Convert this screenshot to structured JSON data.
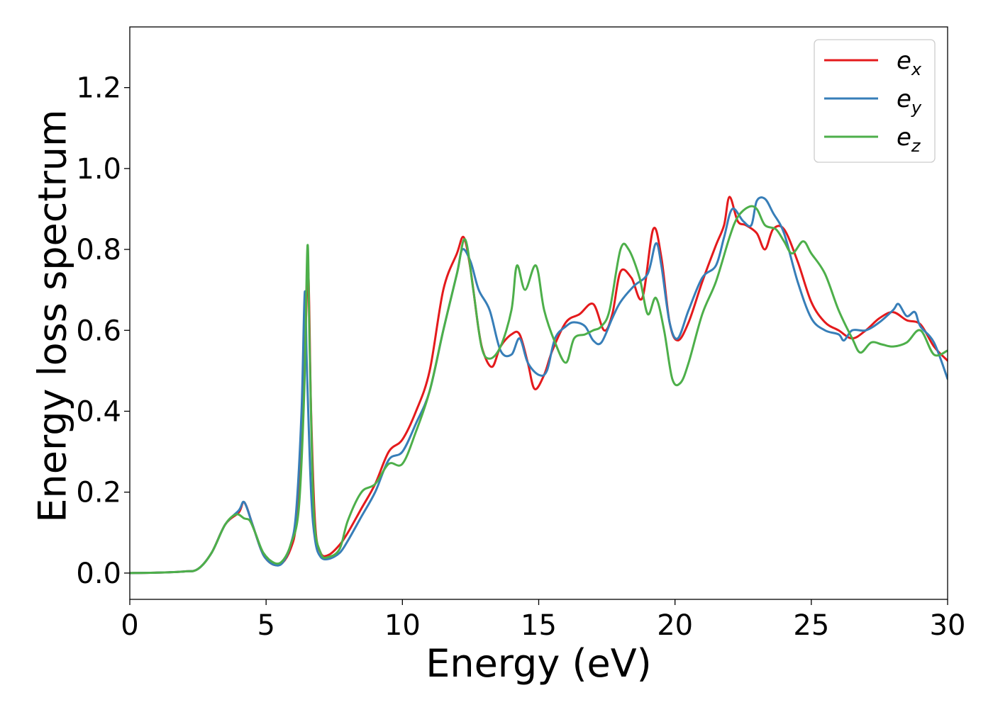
{
  "chart_data": {
    "type": "line",
    "title": "",
    "xlabel": "Energy (eV)",
    "ylabel": "Energy loss spectrum",
    "xlim": [
      0,
      30
    ],
    "ylim": [
      -0.065,
      1.35
    ],
    "xticks": [
      0,
      5,
      10,
      15,
      20,
      25,
      30
    ],
    "xtick_labels": [
      "0",
      "5",
      "10",
      "15",
      "20",
      "25",
      "30"
    ],
    "yticks": [
      0.0,
      0.2,
      0.4,
      0.6,
      0.8,
      1.0,
      1.2
    ],
    "ytick_labels": [
      "0.0",
      "0.2",
      "0.4",
      "0.6",
      "0.8",
      "1.0",
      "1.2"
    ],
    "grid": false,
    "legend_position": "top-right",
    "series": [
      {
        "name": "e",
        "subscript": "x",
        "color": "#e41a1c",
        "points": [
          [
            0,
            0
          ],
          [
            1,
            0.001
          ],
          [
            2,
            0.004
          ],
          [
            2.5,
            0.01
          ],
          [
            3,
            0.05
          ],
          [
            3.5,
            0.12
          ],
          [
            4,
            0.15
          ],
          [
            4.2,
            0.175
          ],
          [
            4.5,
            0.12
          ],
          [
            4.8,
            0.06
          ],
          [
            5,
            0.035
          ],
          [
            5.3,
            0.02
          ],
          [
            5.6,
            0.025
          ],
          [
            5.9,
            0.06
          ],
          [
            6.1,
            0.12
          ],
          [
            6.3,
            0.3
          ],
          [
            6.45,
            0.6
          ],
          [
            6.55,
            0.74
          ],
          [
            6.65,
            0.4
          ],
          [
            6.8,
            0.12
          ],
          [
            7,
            0.05
          ],
          [
            7.3,
            0.045
          ],
          [
            7.7,
            0.07
          ],
          [
            8,
            0.1
          ],
          [
            8.5,
            0.16
          ],
          [
            9,
            0.22
          ],
          [
            9.5,
            0.3
          ],
          [
            10,
            0.33
          ],
          [
            10.5,
            0.4
          ],
          [
            11,
            0.5
          ],
          [
            11.5,
            0.7
          ],
          [
            12,
            0.79
          ],
          [
            12.25,
            0.83
          ],
          [
            12.5,
            0.75
          ],
          [
            12.8,
            0.6
          ],
          [
            13,
            0.54
          ],
          [
            13.3,
            0.51
          ],
          [
            13.6,
            0.56
          ],
          [
            14,
            0.59
          ],
          [
            14.3,
            0.59
          ],
          [
            14.6,
            0.52
          ],
          [
            14.85,
            0.455
          ],
          [
            15.2,
            0.49
          ],
          [
            15.5,
            0.55
          ],
          [
            16,
            0.62
          ],
          [
            16.5,
            0.64
          ],
          [
            17,
            0.665
          ],
          [
            17.4,
            0.6
          ],
          [
            17.7,
            0.64
          ],
          [
            18,
            0.745
          ],
          [
            18.4,
            0.73
          ],
          [
            18.8,
            0.68
          ],
          [
            19.2,
            0.85
          ],
          [
            19.5,
            0.78
          ],
          [
            19.8,
            0.62
          ],
          [
            20.1,
            0.575
          ],
          [
            20.5,
            0.62
          ],
          [
            21,
            0.72
          ],
          [
            21.5,
            0.81
          ],
          [
            21.8,
            0.86
          ],
          [
            22,
            0.93
          ],
          [
            22.3,
            0.87
          ],
          [
            22.6,
            0.86
          ],
          [
            23,
            0.84
          ],
          [
            23.3,
            0.8
          ],
          [
            23.6,
            0.85
          ],
          [
            24,
            0.85
          ],
          [
            24.5,
            0.77
          ],
          [
            25,
            0.67
          ],
          [
            25.5,
            0.62
          ],
          [
            26,
            0.6
          ],
          [
            26.5,
            0.58
          ],
          [
            27,
            0.6
          ],
          [
            27.5,
            0.63
          ],
          [
            28,
            0.645
          ],
          [
            28.5,
            0.625
          ],
          [
            29,
            0.615
          ],
          [
            29.5,
            0.56
          ],
          [
            30,
            0.525
          ]
        ]
      },
      {
        "name": "e",
        "subscript": "y",
        "color": "#377eb8",
        "points": [
          [
            0,
            0
          ],
          [
            1,
            0.001
          ],
          [
            2,
            0.004
          ],
          [
            2.5,
            0.01
          ],
          [
            3,
            0.05
          ],
          [
            3.5,
            0.12
          ],
          [
            4,
            0.155
          ],
          [
            4.2,
            0.175
          ],
          [
            4.5,
            0.12
          ],
          [
            4.8,
            0.06
          ],
          [
            5,
            0.035
          ],
          [
            5.3,
            0.02
          ],
          [
            5.6,
            0.025
          ],
          [
            5.9,
            0.07
          ],
          [
            6.1,
            0.15
          ],
          [
            6.3,
            0.4
          ],
          [
            6.42,
            0.695
          ],
          [
            6.5,
            0.5
          ],
          [
            6.65,
            0.2
          ],
          [
            6.8,
            0.08
          ],
          [
            7,
            0.04
          ],
          [
            7.3,
            0.035
          ],
          [
            7.7,
            0.05
          ],
          [
            8,
            0.08
          ],
          [
            8.5,
            0.14
          ],
          [
            9,
            0.2
          ],
          [
            9.5,
            0.28
          ],
          [
            10,
            0.3
          ],
          [
            10.5,
            0.37
          ],
          [
            11,
            0.45
          ],
          [
            11.5,
            0.6
          ],
          [
            12,
            0.74
          ],
          [
            12.2,
            0.8
          ],
          [
            12.5,
            0.77
          ],
          [
            12.8,
            0.7
          ],
          [
            13.2,
            0.65
          ],
          [
            13.6,
            0.55
          ],
          [
            14,
            0.54
          ],
          [
            14.3,
            0.58
          ],
          [
            14.6,
            0.52
          ],
          [
            15,
            0.49
          ],
          [
            15.3,
            0.5
          ],
          [
            15.6,
            0.58
          ],
          [
            16,
            0.61
          ],
          [
            16.3,
            0.62
          ],
          [
            16.7,
            0.61
          ],
          [
            17,
            0.575
          ],
          [
            17.3,
            0.57
          ],
          [
            17.7,
            0.63
          ],
          [
            18,
            0.67
          ],
          [
            18.5,
            0.71
          ],
          [
            19,
            0.74
          ],
          [
            19.3,
            0.815
          ],
          [
            19.5,
            0.76
          ],
          [
            19.8,
            0.62
          ],
          [
            20.1,
            0.58
          ],
          [
            20.5,
            0.65
          ],
          [
            21,
            0.73
          ],
          [
            21.5,
            0.76
          ],
          [
            21.8,
            0.83
          ],
          [
            22.1,
            0.9
          ],
          [
            22.5,
            0.87
          ],
          [
            22.8,
            0.86
          ],
          [
            23,
            0.92
          ],
          [
            23.3,
            0.925
          ],
          [
            23.6,
            0.89
          ],
          [
            24,
            0.84
          ],
          [
            24.5,
            0.72
          ],
          [
            25,
            0.63
          ],
          [
            25.5,
            0.6
          ],
          [
            26,
            0.59
          ],
          [
            26.2,
            0.575
          ],
          [
            26.5,
            0.6
          ],
          [
            27,
            0.6
          ],
          [
            27.5,
            0.62
          ],
          [
            28,
            0.65
          ],
          [
            28.2,
            0.665
          ],
          [
            28.5,
            0.635
          ],
          [
            28.8,
            0.645
          ],
          [
            29,
            0.61
          ],
          [
            29.5,
            0.57
          ],
          [
            30,
            0.48
          ]
        ]
      },
      {
        "name": "e",
        "subscript": "z",
        "color": "#4daf4a",
        "points": [
          [
            0,
            0
          ],
          [
            1,
            0.001
          ],
          [
            2,
            0.004
          ],
          [
            2.5,
            0.01
          ],
          [
            3,
            0.05
          ],
          [
            3.5,
            0.12
          ],
          [
            3.9,
            0.145
          ],
          [
            4.2,
            0.135
          ],
          [
            4.4,
            0.13
          ],
          [
            4.6,
            0.1
          ],
          [
            4.9,
            0.05
          ],
          [
            5.3,
            0.025
          ],
          [
            5.6,
            0.03
          ],
          [
            5.9,
            0.07
          ],
          [
            6.2,
            0.16
          ],
          [
            6.4,
            0.45
          ],
          [
            6.52,
            0.81
          ],
          [
            6.6,
            0.55
          ],
          [
            6.75,
            0.15
          ],
          [
            7,
            0.05
          ],
          [
            7.3,
            0.04
          ],
          [
            7.7,
            0.06
          ],
          [
            8,
            0.13
          ],
          [
            8.5,
            0.2
          ],
          [
            9,
            0.22
          ],
          [
            9.5,
            0.27
          ],
          [
            10,
            0.27
          ],
          [
            10.5,
            0.35
          ],
          [
            11,
            0.45
          ],
          [
            11.5,
            0.6
          ],
          [
            12,
            0.74
          ],
          [
            12.3,
            0.825
          ],
          [
            12.6,
            0.7
          ],
          [
            12.9,
            0.56
          ],
          [
            13.2,
            0.53
          ],
          [
            13.6,
            0.56
          ],
          [
            14,
            0.65
          ],
          [
            14.2,
            0.76
          ],
          [
            14.5,
            0.7
          ],
          [
            14.9,
            0.76
          ],
          [
            15.2,
            0.65
          ],
          [
            15.6,
            0.57
          ],
          [
            16,
            0.52
          ],
          [
            16.3,
            0.58
          ],
          [
            16.7,
            0.59
          ],
          [
            17,
            0.6
          ],
          [
            17.3,
            0.61
          ],
          [
            17.6,
            0.65
          ],
          [
            18,
            0.8
          ],
          [
            18.3,
            0.8
          ],
          [
            18.7,
            0.73
          ],
          [
            19,
            0.64
          ],
          [
            19.3,
            0.68
          ],
          [
            19.6,
            0.6
          ],
          [
            19.9,
            0.48
          ],
          [
            20.2,
            0.47
          ],
          [
            20.5,
            0.52
          ],
          [
            21,
            0.64
          ],
          [
            21.5,
            0.72
          ],
          [
            22,
            0.83
          ],
          [
            22.3,
            0.88
          ],
          [
            22.7,
            0.905
          ],
          [
            23,
            0.9
          ],
          [
            23.3,
            0.86
          ],
          [
            23.7,
            0.85
          ],
          [
            24,
            0.82
          ],
          [
            24.3,
            0.79
          ],
          [
            24.7,
            0.82
          ],
          [
            25,
            0.79
          ],
          [
            25.5,
            0.74
          ],
          [
            26,
            0.65
          ],
          [
            26.5,
            0.58
          ],
          [
            26.8,
            0.545
          ],
          [
            27.2,
            0.57
          ],
          [
            27.6,
            0.565
          ],
          [
            28,
            0.56
          ],
          [
            28.5,
            0.57
          ],
          [
            29,
            0.6
          ],
          [
            29.5,
            0.54
          ],
          [
            30,
            0.55
          ]
        ]
      }
    ]
  }
}
